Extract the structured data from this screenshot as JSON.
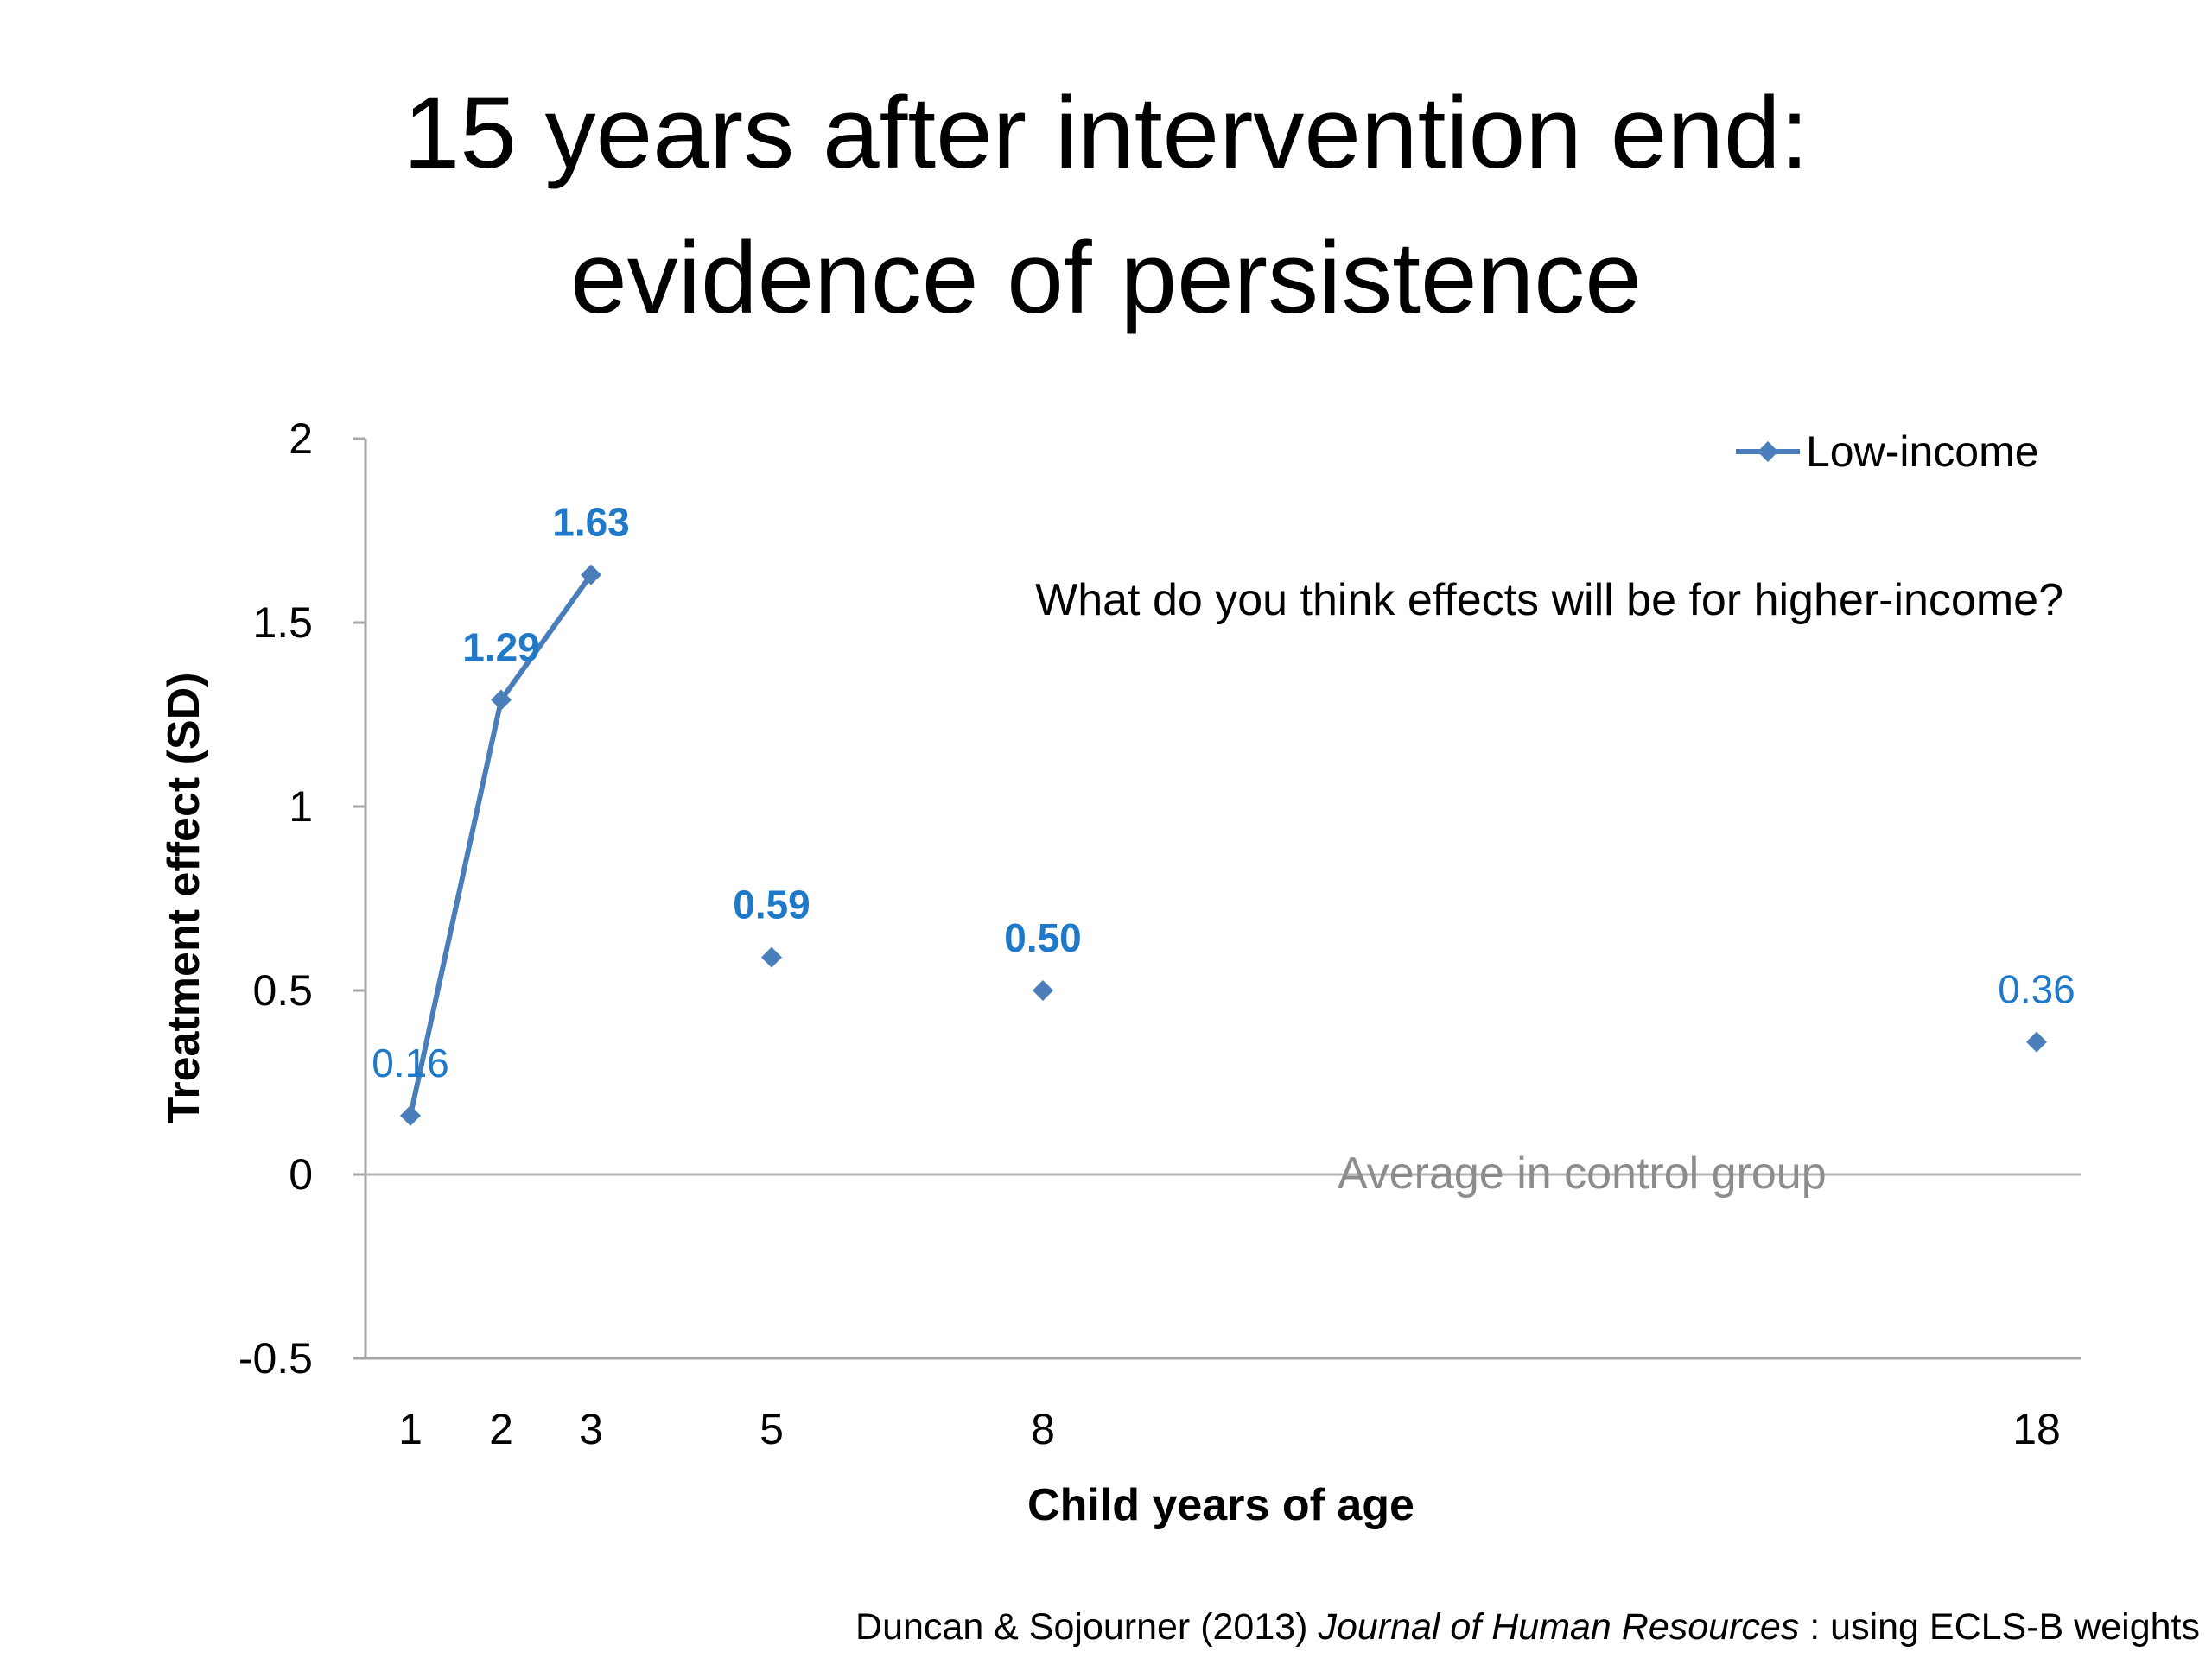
{
  "slide": {
    "title_line1": "15 years after intervention end:",
    "title_line2": "evidence of persistence"
  },
  "footer": {
    "authors": "Duncan & Sojourner (2013) ",
    "journal": "Journal of Human Resources",
    "note": " : using ECLS-B weights"
  },
  "chart_data": {
    "type": "line",
    "title": "",
    "xlabel": "Child years of age",
    "ylabel": "Treatment effect (SD)",
    "x_categories": [
      "1",
      "2",
      "3",
      "5",
      "8",
      "18"
    ],
    "ylim": [
      -0.5,
      2
    ],
    "yticks": [
      "-0.5",
      "0",
      "0.5",
      "1",
      "1.5",
      "2"
    ],
    "grid": false,
    "legend_position": "top-right",
    "series": [
      {
        "name": "Low-income",
        "color": "#4a7ebb",
        "points": [
          {
            "x": "1",
            "y": 0.16,
            "label": "0.16",
            "connected": true
          },
          {
            "x": "2",
            "y": 1.29,
            "label": "1.29",
            "connected": true
          },
          {
            "x": "3",
            "y": 1.63,
            "label": "1.63",
            "connected": true
          },
          {
            "x": "5",
            "y": 0.59,
            "label": "0.59",
            "connected": false
          },
          {
            "x": "8",
            "y": 0.5,
            "label": "0.50",
            "connected": false
          },
          {
            "x": "18",
            "y": 0.36,
            "label": "0.36",
            "connected": false
          }
        ]
      }
    ],
    "annotations": {
      "question": "What do you think effects will be for higher-income?",
      "baseline": "Average in control group"
    },
    "label_color": "#1f78c8",
    "baseline_color": "#8c8c8c"
  }
}
